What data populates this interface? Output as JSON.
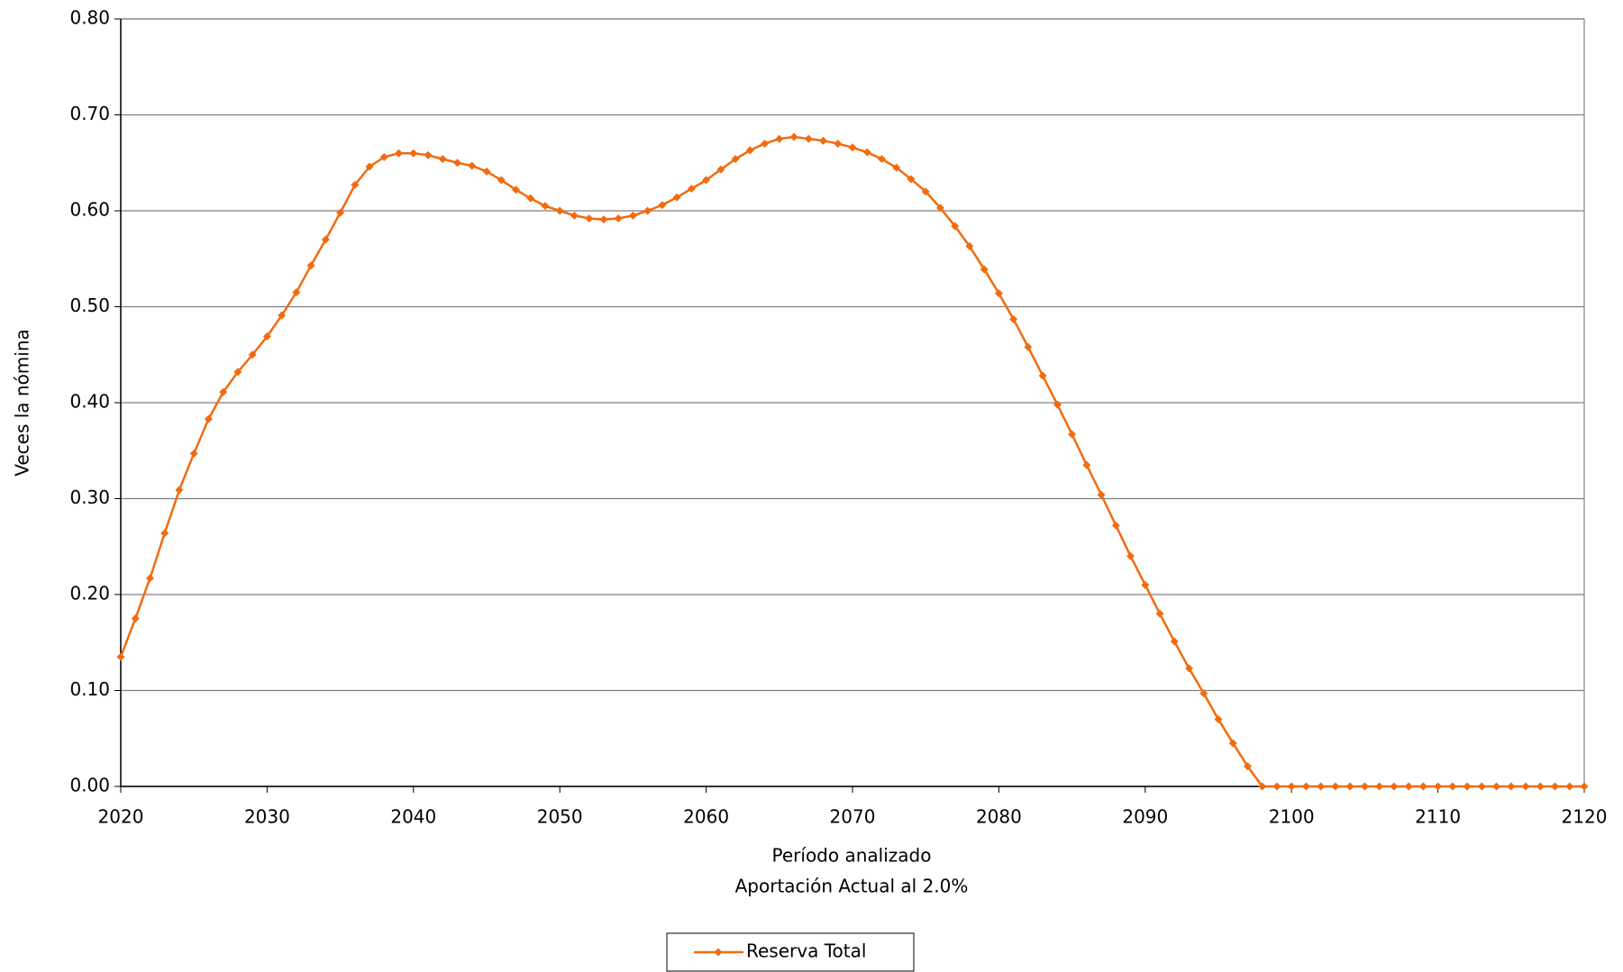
{
  "chart_data": {
    "type": "line",
    "xlabel": "Período analizado",
    "subtitle": "Aportación Actual al 2.0%",
    "ylabel": "Veces la nómina",
    "xlim": [
      2020,
      2120
    ],
    "xticks": [
      2020,
      2030,
      2040,
      2050,
      2060,
      2070,
      2080,
      2090,
      2100,
      2110,
      2120
    ],
    "ylim": [
      0,
      0.8
    ],
    "yticks": [
      {
        "value": 0,
        "label": "0.00"
      },
      {
        "value": 0.1,
        "label": "0.10"
      },
      {
        "value": 0.2,
        "label": "0.20"
      },
      {
        "value": 0.3,
        "label": "0.30"
      },
      {
        "value": 0.4,
        "label": "0.40"
      },
      {
        "value": 0.5,
        "label": "0.50"
      },
      {
        "value": 0.6,
        "label": "0.60"
      },
      {
        "value": 0.7,
        "label": "0.70"
      },
      {
        "value": 0.8,
        "label": "0.80"
      }
    ],
    "grid": true,
    "legend": "bottom",
    "x": [
      2020,
      2021,
      2022,
      2023,
      2024,
      2025,
      2026,
      2027,
      2028,
      2029,
      2030,
      2031,
      2032,
      2033,
      2034,
      2035,
      2036,
      2037,
      2038,
      2039,
      2040,
      2041,
      2042,
      2043,
      2044,
      2045,
      2046,
      2047,
      2048,
      2049,
      2050,
      2051,
      2052,
      2053,
      2054,
      2055,
      2056,
      2057,
      2058,
      2059,
      2060,
      2061,
      2062,
      2063,
      2064,
      2065,
      2066,
      2067,
      2068,
      2069,
      2070,
      2071,
      2072,
      2073,
      2074,
      2075,
      2076,
      2077,
      2078,
      2079,
      2080,
      2081,
      2082,
      2083,
      2084,
      2085,
      2086,
      2087,
      2088,
      2089,
      2090,
      2091,
      2092,
      2093,
      2094,
      2095,
      2096,
      2097,
      2098,
      2099,
      2100,
      2101,
      2102,
      2103,
      2104,
      2105,
      2106,
      2107,
      2108,
      2109,
      2110,
      2111,
      2112,
      2113,
      2114,
      2115,
      2116,
      2117,
      2118,
      2119,
      2120
    ],
    "series": [
      {
        "name": "Reserva Total",
        "color": "#f26b0f",
        "values": [
          0.135,
          0.175,
          0.217,
          0.264,
          0.309,
          0.347,
          0.383,
          0.411,
          0.432,
          0.45,
          0.469,
          0.491,
          0.515,
          0.543,
          0.57,
          0.598,
          0.627,
          0.646,
          0.656,
          0.66,
          0.66,
          0.658,
          0.654,
          0.65,
          0.647,
          0.641,
          0.632,
          0.622,
          0.613,
          0.605,
          0.6,
          0.595,
          0.592,
          0.591,
          0.592,
          0.595,
          0.6,
          0.606,
          0.614,
          0.623,
          0.632,
          0.643,
          0.654,
          0.663,
          0.67,
          0.675,
          0.677,
          0.675,
          0.673,
          0.67,
          0.666,
          0.661,
          0.654,
          0.645,
          0.633,
          0.62,
          0.603,
          0.584,
          0.563,
          0.539,
          0.514,
          0.487,
          0.458,
          0.428,
          0.398,
          0.367,
          0.335,
          0.304,
          0.272,
          0.24,
          0.21,
          0.18,
          0.151,
          0.123,
          0.097,
          0.07,
          0.045,
          0.021,
          0,
          0,
          0,
          0,
          0,
          0,
          0,
          0,
          0,
          0,
          0,
          0,
          0,
          0,
          0,
          0,
          0,
          0,
          0,
          0,
          0,
          0,
          0
        ]
      }
    ]
  }
}
